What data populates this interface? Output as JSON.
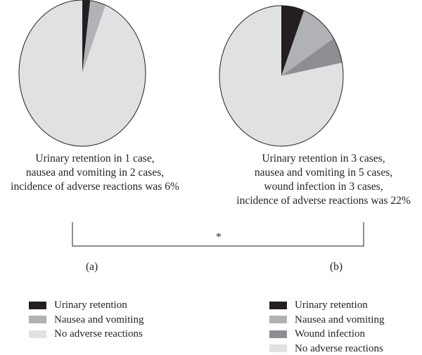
{
  "chart_data": [
    {
      "type": "pie",
      "label": "(a)",
      "start": "top",
      "direction": "clockwise",
      "slices": [
        {
          "name": "Urinary retention",
          "value": 1,
          "color": "#231f20"
        },
        {
          "name": "Nausea and vomiting",
          "value": 2,
          "color": "#b1b2b5"
        },
        {
          "name": "No adverse reactions",
          "value": 47,
          "color": "#e0e1e3"
        }
      ],
      "caption": [
        "Urinary retention in 1 case,",
        "nausea and vomiting in 2 cases,",
        "incidence of adverse reactions was 6%"
      ]
    },
    {
      "type": "pie",
      "label": "(b)",
      "start": "top",
      "direction": "clockwise",
      "slices": [
        {
          "name": "Urinary retention",
          "value": 3,
          "color": "#231f20"
        },
        {
          "name": "Nausea and vomiting",
          "value": 5,
          "color": "#b1b2b5"
        },
        {
          "name": "Wound infection",
          "value": 3,
          "color": "#8d8e91"
        },
        {
          "name": "No adverse reactions",
          "value": 39,
          "color": "#e0e1e3"
        }
      ],
      "caption": [
        "Urinary retention in 3 cases,",
        "nausea and vomiting in 5 cases,",
        "wound infection in 3 cases,",
        "incidence of adverse reactions was 22%"
      ]
    }
  ],
  "significance": "*"
}
